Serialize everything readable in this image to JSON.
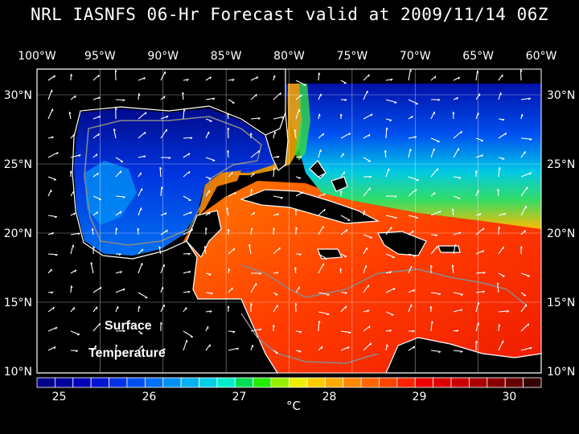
{
  "title": "NRL IASNFS  06-Hr Forecast valid at 2009/11/14 06Z",
  "overlay_label": {
    "line1": "Surface",
    "line2": "Temperature"
  },
  "map": {
    "lon_labels": [
      "100°W",
      "95°W",
      "90°W",
      "85°W",
      "80°W",
      "75°W",
      "70°W",
      "65°W",
      "60°W"
    ],
    "lat_labels": [
      "30°N",
      "25°N",
      "20°N",
      "15°N",
      "10°N"
    ],
    "colors": {
      "land": "#000000",
      "coast": "#ffffff",
      "isobath": "#8a8a8a",
      "grid": "#ffffff",
      "vectors": "#ffffff"
    }
  },
  "colorbar": {
    "tick_labels": [
      "25",
      "26",
      "27",
      "28",
      "29",
      "30"
    ],
    "unit": "°C",
    "colors": [
      "#000088",
      "#00009c",
      "#0000b8",
      "#0014d2",
      "#0032e6",
      "#0050f0",
      "#0070f5",
      "#0090f5",
      "#00b0f0",
      "#00d0e6",
      "#00eecc",
      "#00dd55",
      "#22ee00",
      "#99ee00",
      "#eeee00",
      "#ffcc00",
      "#ffaa00",
      "#ff8800",
      "#ff6600",
      "#ff4400",
      "#ff2200",
      "#ee0000",
      "#dd0000",
      "#cc0000",
      "#aa0000",
      "#880000",
      "#660000",
      "#330000"
    ]
  }
}
